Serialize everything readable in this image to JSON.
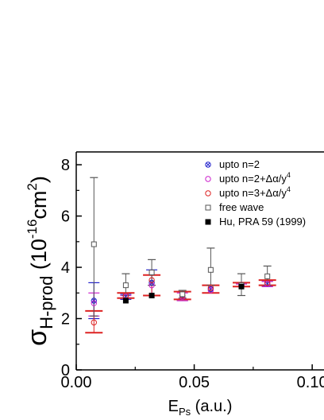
{
  "chart_data": {
    "type": "scatter",
    "title": "",
    "xlabel": {
      "main": "E",
      "sub": "Ps",
      "unit": " (a.u.)"
    },
    "ylabel": {
      "main": "σ",
      "sub": "H-prod",
      "unit_open": " (10",
      "exp": "-16",
      "unit_mid": "cm",
      "exp2": "2",
      "unit_close": ")"
    },
    "xlim": [
      0.0,
      0.105
    ],
    "ylim": [
      0,
      8.5
    ],
    "x_ticks": [
      {
        "value": 0.0,
        "label": "0.00"
      },
      {
        "value": 0.05,
        "label": "0.05"
      },
      {
        "value": 0.1,
        "label": "0.10"
      }
    ],
    "y_ticks": [
      {
        "value": 0,
        "label": "0"
      },
      {
        "value": 2,
        "label": "2"
      },
      {
        "value": 4,
        "label": "4"
      },
      {
        "value": 6,
        "label": "6"
      },
      {
        "value": 8,
        "label": "8"
      }
    ],
    "grid": false,
    "legend_position": "top-right",
    "series": [
      {
        "name": "upto n=2",
        "marker": "circle-x",
        "color": "#2222cc",
        "points": [
          {
            "x": 0.0075,
            "y": 2.7,
            "ylo": 2.0,
            "yhi": 3.4
          },
          {
            "x": 0.021,
            "y": 2.85,
            "ylo": 2.75,
            "yhi": 2.95
          },
          {
            "x": 0.032,
            "y": 3.4,
            "ylo": 2.9,
            "yhi": 3.9
          },
          {
            "x": 0.045,
            "y": 2.85,
            "ylo": 2.7,
            "yhi": 3.05
          },
          {
            "x": 0.057,
            "y": 3.15,
            "ylo": 3.0,
            "yhi": 3.3
          },
          {
            "x": 0.07,
            "y": 3.3,
            "ylo": 3.25,
            "yhi": 3.35
          },
          {
            "x": 0.081,
            "y": 3.35,
            "ylo": 3.25,
            "yhi": 3.45
          }
        ]
      },
      {
        "name": "upto n=2+Δα/y",
        "name_sup": "4",
        "marker": "circle",
        "color": "#cc22cc",
        "points": [
          {
            "x": 0.0075,
            "y": 2.6,
            "ylo": 2.1,
            "yhi": 3.0
          },
          {
            "x": 0.021,
            "y": 2.85,
            "ylo": 2.8,
            "yhi": 2.9
          },
          {
            "x": 0.032,
            "y": 3.3,
            "ylo": 2.9,
            "yhi": 3.7
          },
          {
            "x": 0.045,
            "y": 2.85,
            "ylo": 2.7,
            "yhi": 3.0
          },
          {
            "x": 0.057,
            "y": 3.1,
            "ylo": 3.0,
            "yhi": 3.3
          },
          {
            "x": 0.07,
            "y": 3.3,
            "ylo": 3.25,
            "yhi": 3.35
          },
          {
            "x": 0.081,
            "y": 3.35,
            "ylo": 3.25,
            "yhi": 3.45
          }
        ]
      },
      {
        "name": "upto n=3+Δα/y",
        "name_sup": "4",
        "marker": "circle",
        "color": "#dd2222",
        "points": [
          {
            "x": 0.0075,
            "y": 1.85,
            "ylo": 1.45,
            "yhi": 2.3
          },
          {
            "x": 0.021,
            "y": 2.9,
            "ylo": 2.8,
            "yhi": 3.0
          },
          {
            "x": 0.032,
            "y": 3.5,
            "ylo": 2.9,
            "yhi": 3.7
          },
          {
            "x": 0.045,
            "y": 2.9,
            "ylo": 2.75,
            "yhi": 3.05
          },
          {
            "x": 0.057,
            "y": 3.2,
            "ylo": 3.0,
            "yhi": 3.3
          },
          {
            "x": 0.07,
            "y": 3.3,
            "ylo": 3.25,
            "yhi": 3.4
          },
          {
            "x": 0.081,
            "y": 3.4,
            "ylo": 3.3,
            "yhi": 3.5
          }
        ]
      },
      {
        "name": "free wave",
        "marker": "square-open",
        "color": "#555555",
        "points": [
          {
            "x": 0.0075,
            "y": 4.9,
            "ylo": 2.1,
            "yhi": 7.5
          },
          {
            "x": 0.021,
            "y": 3.3,
            "ylo": 2.9,
            "yhi": 3.75
          },
          {
            "x": 0.032,
            "y": 3.8,
            "ylo": 3.3,
            "yhi": 4.3
          },
          {
            "x": 0.045,
            "y": 2.95,
            "ylo": 2.8,
            "yhi": 3.1
          },
          {
            "x": 0.057,
            "y": 3.9,
            "ylo": 3.3,
            "yhi": 4.75
          },
          {
            "x": 0.07,
            "y": 3.3,
            "ylo": 2.9,
            "yhi": 3.75
          },
          {
            "x": 0.081,
            "y": 3.65,
            "ylo": 3.3,
            "yhi": 4.05
          }
        ]
      },
      {
        "name": "Hu, PRA 59 (1999)",
        "marker": "square-filled",
        "color": "#000000",
        "points": [
          {
            "x": 0.021,
            "y": 2.7
          },
          {
            "x": 0.032,
            "y": 2.9
          },
          {
            "x": 0.07,
            "y": 3.25
          }
        ]
      }
    ]
  }
}
